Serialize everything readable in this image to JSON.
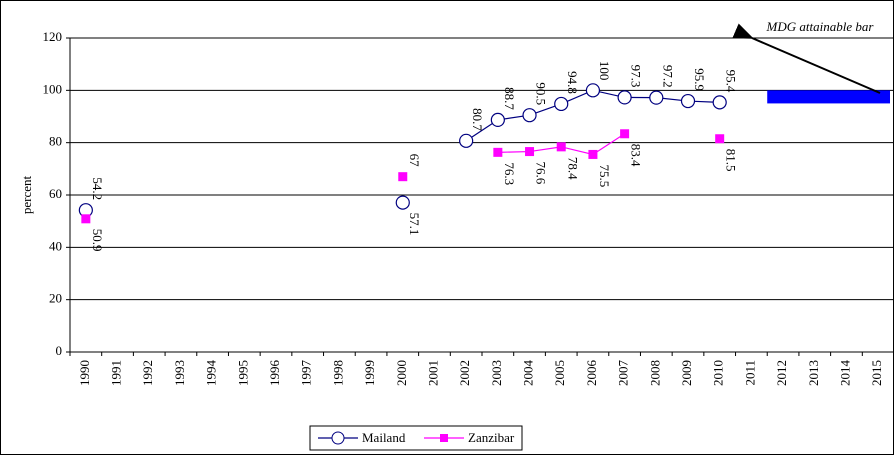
{
  "chart_data": {
    "type": "line",
    "y_label": "percent",
    "categories": [
      "1990",
      "1991",
      "1992",
      "1993",
      "1994",
      "1995",
      "1996",
      "1997",
      "1998",
      "1999",
      "2000",
      "2001",
      "2002",
      "2003",
      "2004",
      "2005",
      "2006",
      "2007",
      "2008",
      "2009",
      "2010",
      "2011",
      "2012",
      "2013",
      "2014",
      "2015"
    ],
    "series": [
      {
        "name": "Mailand",
        "color": "#000080",
        "marker": "circle",
        "values": [
          54.2,
          null,
          null,
          null,
          null,
          null,
          null,
          null,
          null,
          null,
          57.1,
          null,
          80.7,
          88.7,
          90.5,
          94.8,
          100,
          97.3,
          97.2,
          95.9,
          95.4,
          null,
          null,
          null,
          null,
          null
        ]
      },
      {
        "name": "Zanzibar",
        "color": "#ff00ff",
        "marker": "square",
        "values": [
          50.9,
          null,
          null,
          null,
          null,
          null,
          null,
          null,
          null,
          null,
          67,
          null,
          null,
          76.3,
          76.6,
          78.4,
          75.5,
          83.4,
          null,
          null,
          81.5,
          null,
          null,
          null,
          null,
          null
        ]
      }
    ],
    "ylim": [
      0,
      120
    ],
    "yticks": [
      0,
      20,
      40,
      60,
      80,
      100,
      120
    ],
    "grid": true,
    "mdg_bar": {
      "label": "MDG attainable bar",
      "x": [
        "2012",
        "2015"
      ],
      "ylim": [
        95,
        100
      ],
      "color": "#0000ff"
    }
  }
}
